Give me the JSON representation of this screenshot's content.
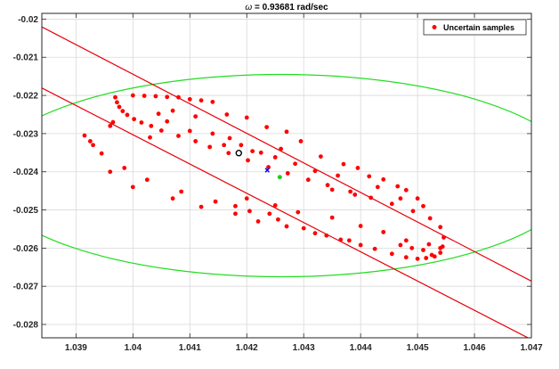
{
  "chart_data": {
    "type": "scatter",
    "title_omega": "ω",
    "title_rest": " = 0.93681 rad/sec",
    "xlabel": "",
    "ylabel": "",
    "xlim": [
      1.0384,
      1.047
    ],
    "ylim": [
      -0.02835,
      -0.01985
    ],
    "xticks": [
      "1.039",
      "1.04",
      "1.041",
      "1.042",
      "1.043",
      "1.044",
      "1.045",
      "1.046",
      "1.047"
    ],
    "yticks": [
      "-0.02",
      "-0.021",
      "-0.022",
      "-0.023",
      "-0.024",
      "-0.025",
      "-0.026",
      "-0.027",
      "-0.028"
    ],
    "grid": true,
    "legend_position": "top-right",
    "colors": {
      "samples": "#ff0000",
      "lines": "#e8000b",
      "ellipse": "#22dd22",
      "green_point": "#22cc22",
      "blue_marker": "#0000ff",
      "black_circle": "#000000"
    },
    "series": [
      {
        "name": "Uncertain samples",
        "marker": "dot",
        "points": [
          [
            1.03969,
            -0.02205
          ],
          [
            1.03972,
            -0.02218
          ],
          [
            1.03976,
            -0.0223
          ],
          [
            1.03982,
            -0.02241
          ],
          [
            1.0399,
            -0.02251
          ],
          [
            1.04002,
            -0.02262
          ],
          [
            1.04015,
            -0.02271
          ],
          [
            1.04032,
            -0.0228
          ],
          [
            1.0405,
            -0.02292
          ],
          [
            1.0408,
            -0.02306
          ],
          [
            1.0411,
            -0.0232
          ],
          [
            1.04135,
            -0.02335
          ],
          [
            1.04168,
            -0.02351
          ],
          [
            1.04202,
            -0.0237
          ],
          [
            1.04238,
            -0.02388
          ],
          [
            1.04272,
            -0.02404
          ],
          [
            1.04308,
            -0.02421
          ],
          [
            1.04342,
            -0.02435
          ],
          [
            1.04382,
            -0.02452
          ],
          [
            1.04418,
            -0.02468
          ],
          [
            1.04455,
            -0.02484
          ],
          [
            1.04492,
            -0.02503
          ],
          [
            1.04522,
            -0.02522
          ],
          [
            1.0454,
            -0.02545
          ],
          [
            1.04546,
            -0.02572
          ],
          [
            1.04544,
            -0.02596
          ],
          [
            1.0454,
            -0.02612
          ],
          [
            1.0453,
            -0.02622
          ],
          [
            1.04515,
            -0.02626
          ],
          [
            1.045,
            -0.02628
          ],
          [
            1.0448,
            -0.02624
          ],
          [
            1.04455,
            -0.02615
          ],
          [
            1.04425,
            -0.02602
          ],
          [
            1.044,
            -0.02592
          ],
          [
            1.04365,
            -0.02578
          ],
          [
            1.0434,
            -0.02567
          ],
          [
            1.043,
            -0.02548
          ],
          [
            1.04255,
            -0.02525
          ],
          [
            1.04205,
            -0.02503
          ],
          [
            1.04145,
            -0.02478
          ],
          [
            1.04085,
            -0.02452
          ],
          [
            1.04025,
            -0.02421
          ],
          [
            1.03985,
            -0.0239
          ],
          [
            1.03945,
            -0.02352
          ],
          [
            1.03915,
            -0.02305
          ],
          [
            1.03965,
            -0.0227
          ],
          [
            1.0403,
            -0.0231
          ],
          [
            1.04,
            -0.022
          ],
          [
            1.0402,
            -0.02201
          ],
          [
            1.0404,
            -0.02202
          ],
          [
            1.0406,
            -0.02204
          ],
          [
            1.0408,
            -0.02205
          ],
          [
            1.041,
            -0.0221
          ],
          [
            1.0412,
            -0.02213
          ],
          [
            1.0414,
            -0.02217
          ],
          [
            1.04165,
            -0.0225
          ],
          [
            1.042,
            -0.02258
          ],
          [
            1.04235,
            -0.02283
          ],
          [
            1.0427,
            -0.02295
          ],
          [
            1.0426,
            -0.0234
          ],
          [
            1.04295,
            -0.0232
          ],
          [
            1.0433,
            -0.0236
          ],
          [
            1.0437,
            -0.0238
          ],
          [
            1.04395,
            -0.0239
          ],
          [
            1.04415,
            -0.02412
          ],
          [
            1.0444,
            -0.0242
          ],
          [
            1.04465,
            -0.02438
          ],
          [
            1.0448,
            -0.02448
          ],
          [
            1.045,
            -0.0247
          ],
          [
            1.0451,
            -0.0249
          ],
          [
            1.0447,
            -0.0247
          ],
          [
            1.0443,
            -0.0244
          ],
          [
            1.0436,
            -0.0241
          ],
          [
            1.0432,
            -0.02398
          ],
          [
            1.04285,
            -0.02379
          ],
          [
            1.0425,
            -0.02362
          ],
          [
            1.04225,
            -0.0235
          ],
          [
            1.0421,
            -0.02346
          ],
          [
            1.0419,
            -0.0233
          ],
          [
            1.0417,
            -0.02312
          ],
          [
            1.041,
            -0.02293
          ],
          [
            1.0406,
            -0.02268
          ],
          [
            1.04045,
            -0.02248
          ],
          [
            1.0407,
            -0.0224
          ],
          [
            1.0411,
            -0.02255
          ],
          [
            1.0414,
            -0.023
          ],
          [
            1.0416,
            -0.0233
          ],
          [
            1.042,
            -0.0247
          ],
          [
            1.0425,
            -0.02488
          ],
          [
            1.0429,
            -0.02506
          ],
          [
            1.0435,
            -0.0252
          ],
          [
            1.044,
            -0.02542
          ],
          [
            1.0444,
            -0.02558
          ],
          [
            1.0448,
            -0.0258
          ],
          [
            1.0452,
            -0.0259
          ],
          [
            1.0451,
            -0.02605
          ],
          [
            1.0449,
            -0.026
          ],
          [
            1.0447,
            -0.02592
          ],
          [
            1.0438,
            -0.0258
          ],
          [
            1.0432,
            -0.02561
          ],
          [
            1.0427,
            -0.02543
          ],
          [
            1.0422,
            -0.0253
          ],
          [
            1.0418,
            -0.0251
          ],
          [
            1.0412,
            -0.02492
          ],
          [
            1.0407,
            -0.0247
          ],
          [
            1.04,
            -0.0244
          ],
          [
            1.0396,
            -0.024
          ],
          [
            1.0393,
            -0.0233
          ],
          [
            1.03925,
            -0.0232
          ],
          [
            1.0396,
            -0.0228
          ],
          [
            1.0454,
            -0.026
          ],
          [
            1.04525,
            -0.02618
          ],
          [
            1.0435,
            -0.02447
          ],
          [
            1.0439,
            -0.0246
          ],
          [
            1.0424,
            -0.0251
          ],
          [
            1.0418,
            -0.0249
          ]
        ]
      }
    ],
    "bounding_lines": [
      {
        "x": [
          1.0382,
          1.0472
        ],
        "y": [
          -0.02005,
          -0.02702
        ]
      },
      {
        "x": [
          1.0382,
          1.0472
        ],
        "y": [
          -0.02165,
          -0.02855
        ]
      }
    ],
    "ellipse": {
      "center_x": 1.0426,
      "center_y": -0.0241,
      "semi_x": 0.0052,
      "semi_y": 0.00265
    },
    "points": {
      "green": [
        1.04258,
        -0.02414
      ],
      "blue_x": [
        1.04236,
        -0.02396
      ],
      "black_circle": [
        1.04186,
        -0.02351
      ]
    }
  }
}
